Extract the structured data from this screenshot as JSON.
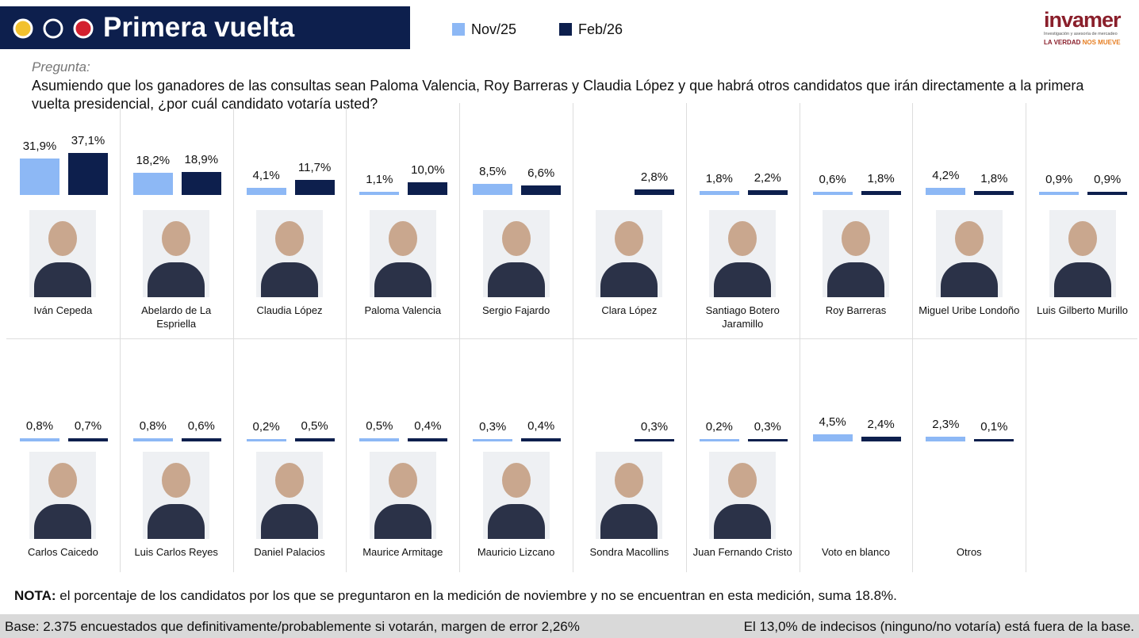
{
  "header": {
    "title": "Primera vuelta",
    "logo": "invamer",
    "logo_sub": "Investigación y asesoría de mercadeo",
    "slogan_a": "LA VERDAD",
    "slogan_b": "NOS MUEVE"
  },
  "question": {
    "label": "Pregunta:",
    "text": "Asumiendo que los ganadores de las consultas sean Paloma Valencia, Roy Barreras y Claudia López y que habrá otros candidatos que irán directamente a la primera vuelta presidencial, ¿por cuál candidato votaría usted?"
  },
  "chart_data": {
    "type": "bar",
    "categories": [
      "Iván Cepeda",
      "Abelardo de La Espriella",
      "Claudia López",
      "Paloma Valencia",
      "Sergio Fajardo",
      "Clara López",
      "Santiago Botero Jaramillo",
      "Roy Barreras",
      "Miguel Uribe Londoño",
      "Luis Gilberto Murillo",
      "Carlos Caicedo",
      "Luis Carlos Reyes",
      "Daniel Palacios",
      "Maurice Armitage",
      "Mauricio Lizcano",
      "Sondra Macollins",
      "Juan Fernando Cristo",
      "Voto en blanco",
      "Otros"
    ],
    "series": [
      {
        "name": "Nov/25",
        "color": "#8db8f5",
        "values": [
          31.9,
          18.2,
          4.1,
          1.1,
          8.5,
          null,
          1.8,
          0.6,
          4.2,
          0.9,
          0.8,
          0.8,
          0.2,
          0.5,
          0.3,
          null,
          0.2,
          4.5,
          2.3
        ],
        "value_labels": [
          "31,9%",
          "18,2%",
          "4,1%",
          "1,1%",
          "8,5%",
          null,
          "1,8%",
          "0,6%",
          "4,2%",
          "0,9%",
          "0,8%",
          "0,8%",
          "0,2%",
          "0,5%",
          "0,3%",
          null,
          "0,2%",
          "4,5%",
          "2,3%"
        ]
      },
      {
        "name": "Feb/26",
        "color": "#0d1f4d",
        "values": [
          37.1,
          18.9,
          11.7,
          10.0,
          6.6,
          2.8,
          2.2,
          1.8,
          1.8,
          0.9,
          0.7,
          0.6,
          0.5,
          0.4,
          0.4,
          0.3,
          0.3,
          2.4,
          0.1
        ],
        "value_labels": [
          "37,1%",
          "18,9%",
          "11,7%",
          "10,0%",
          "6,6%",
          "2,8%",
          "2,2%",
          "1,8%",
          "1,8%",
          "0,9%",
          "0,7%",
          "0,6%",
          "0,5%",
          "0,4%",
          "0,4%",
          "0,3%",
          "0,3%",
          "2,4%",
          "0,1%"
        ]
      }
    ]
  },
  "note": {
    "label": "NOTA:",
    "text": "el porcentaje de los candidatos por los que se preguntaron en la medición de noviembre y no se encuentran en esta medición, suma 18.8%."
  },
  "footer": {
    "base": "Base: 2.375 encuestados que definitivamente/probablemente si votarán, margen de error 2,26%",
    "undecided": "El 13,0% de indecisos (ninguno/no votaría) está fuera de la base."
  }
}
